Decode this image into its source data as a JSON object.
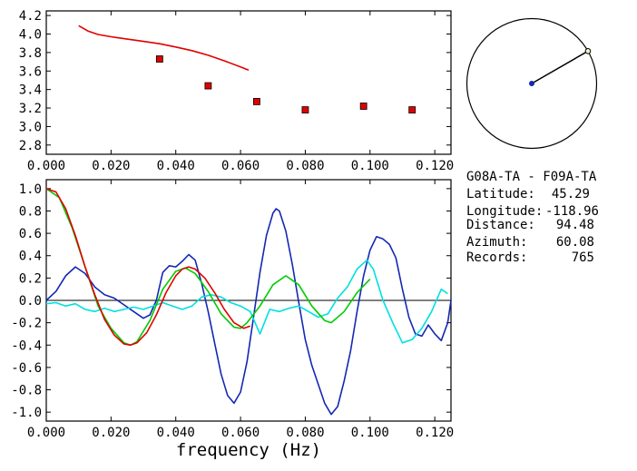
{
  "station_pair": "G08A-TA - F09A-TA",
  "info": [
    {
      "label": "Latitude:",
      "value": "45.29"
    },
    {
      "label": "Longitude:",
      "value": "-118.96"
    },
    {
      "label": "Distance:",
      "value": "94.48"
    },
    {
      "label": "Azimuth:",
      "value": "60.08"
    },
    {
      "label": "Records:",
      "value": "765"
    }
  ],
  "map": {
    "azimuth_deg": 60.08,
    "marker_color": "#1428b4"
  },
  "chart_data": [
    {
      "type": "scatter",
      "xlim": [
        0.0,
        0.125
      ],
      "ylim": [
        2.7,
        4.25
      ],
      "xticks": [
        "0.000",
        "0.020",
        "0.040",
        "0.060",
        "0.080",
        "0.100",
        "0.120"
      ],
      "yticks": [
        "2.8",
        "3.0",
        "3.2",
        "3.4",
        "3.6",
        "3.8",
        "4.0",
        "4.2"
      ],
      "series": [
        {
          "kind": "line",
          "color": "#e00000",
          "points": [
            [
              0.01,
              4.09
            ],
            [
              0.013,
              4.03
            ],
            [
              0.016,
              3.995
            ],
            [
              0.02,
              3.97
            ],
            [
              0.025,
              3.945
            ],
            [
              0.03,
              3.92
            ],
            [
              0.035,
              3.895
            ],
            [
              0.04,
              3.86
            ],
            [
              0.045,
              3.82
            ],
            [
              0.05,
              3.77
            ],
            [
              0.055,
              3.71
            ],
            [
              0.06,
              3.645
            ],
            [
              0.0625,
              3.61
            ]
          ]
        },
        {
          "kind": "markers",
          "color": "#e00000",
          "points": [
            [
              0.035,
              3.73
            ],
            [
              0.05,
              3.44
            ],
            [
              0.065,
              3.27
            ],
            [
              0.08,
              3.18
            ],
            [
              0.098,
              3.22
            ],
            [
              0.113,
              3.18
            ]
          ]
        }
      ]
    },
    {
      "type": "line",
      "xlim": [
        0.0,
        0.125
      ],
      "ylim": [
        -1.08,
        1.08
      ],
      "xticks": [
        "0.000",
        "0.020",
        "0.040",
        "0.060",
        "0.080",
        "0.100",
        "0.120"
      ],
      "yticks": [
        "1.0",
        "0.8",
        "0.6",
        "0.4",
        "0.2",
        "0.0",
        "-0.2",
        "-0.4",
        "-0.6",
        "-0.8",
        "-1.0"
      ],
      "xlabel": "frequency (Hz)",
      "zero_line": true,
      "series": [
        {
          "color": "#1428b4",
          "points": [
            [
              0.0,
              0.0
            ],
            [
              0.003,
              0.08
            ],
            [
              0.006,
              0.22
            ],
            [
              0.009,
              0.3
            ],
            [
              0.012,
              0.24
            ],
            [
              0.015,
              0.12
            ],
            [
              0.018,
              0.05
            ],
            [
              0.021,
              0.02
            ],
            [
              0.024,
              -0.04
            ],
            [
              0.027,
              -0.1
            ],
            [
              0.03,
              -0.16
            ],
            [
              0.032,
              -0.13
            ],
            [
              0.034,
              0.0
            ],
            [
              0.036,
              0.25
            ],
            [
              0.038,
              0.31
            ],
            [
              0.04,
              0.3
            ],
            [
              0.042,
              0.35
            ],
            [
              0.044,
              0.41
            ],
            [
              0.046,
              0.36
            ],
            [
              0.048,
              0.15
            ],
            [
              0.05,
              -0.1
            ],
            [
              0.052,
              -0.38
            ],
            [
              0.054,
              -0.66
            ],
            [
              0.056,
              -0.85
            ],
            [
              0.058,
              -0.92
            ],
            [
              0.06,
              -0.82
            ],
            [
              0.062,
              -0.55
            ],
            [
              0.064,
              -0.15
            ],
            [
              0.066,
              0.25
            ],
            [
              0.068,
              0.58
            ],
            [
              0.07,
              0.78
            ],
            [
              0.071,
              0.82
            ],
            [
              0.072,
              0.8
            ],
            [
              0.074,
              0.62
            ],
            [
              0.076,
              0.32
            ],
            [
              0.078,
              -0.02
            ],
            [
              0.08,
              -0.35
            ],
            [
              0.082,
              -0.58
            ],
            [
              0.084,
              -0.75
            ],
            [
              0.086,
              -0.92
            ],
            [
              0.088,
              -1.02
            ],
            [
              0.09,
              -0.95
            ],
            [
              0.092,
              -0.72
            ],
            [
              0.094,
              -0.45
            ],
            [
              0.096,
              -0.1
            ],
            [
              0.098,
              0.22
            ],
            [
              0.1,
              0.45
            ],
            [
              0.102,
              0.57
            ],
            [
              0.104,
              0.55
            ],
            [
              0.106,
              0.5
            ],
            [
              0.108,
              0.38
            ],
            [
              0.11,
              0.1
            ],
            [
              0.112,
              -0.15
            ],
            [
              0.114,
              -0.3
            ],
            [
              0.116,
              -0.32
            ],
            [
              0.118,
              -0.22
            ],
            [
              0.12,
              -0.3
            ],
            [
              0.122,
              -0.36
            ],
            [
              0.124,
              -0.2
            ],
            [
              0.125,
              0.0
            ]
          ]
        },
        {
          "color": "#00e0e0",
          "points": [
            [
              0.0,
              -0.03
            ],
            [
              0.003,
              -0.02
            ],
            [
              0.006,
              -0.05
            ],
            [
              0.009,
              -0.03
            ],
            [
              0.012,
              -0.08
            ],
            [
              0.015,
              -0.1
            ],
            [
              0.018,
              -0.07
            ],
            [
              0.021,
              -0.1
            ],
            [
              0.024,
              -0.08
            ],
            [
              0.027,
              -0.06
            ],
            [
              0.03,
              -0.08
            ],
            [
              0.033,
              -0.05
            ],
            [
              0.036,
              -0.02
            ],
            [
              0.039,
              -0.05
            ],
            [
              0.042,
              -0.08
            ],
            [
              0.045,
              -0.05
            ],
            [
              0.048,
              0.03
            ],
            [
              0.051,
              0.05
            ],
            [
              0.054,
              0.03
            ],
            [
              0.057,
              -0.02
            ],
            [
              0.06,
              -0.05
            ],
            [
              0.063,
              -0.1
            ],
            [
              0.066,
              -0.3
            ],
            [
              0.069,
              -0.08
            ],
            [
              0.072,
              -0.1
            ],
            [
              0.075,
              -0.07
            ],
            [
              0.078,
              -0.05
            ],
            [
              0.081,
              -0.1
            ],
            [
              0.084,
              -0.15
            ],
            [
              0.087,
              -0.12
            ],
            [
              0.09,
              0.02
            ],
            [
              0.093,
              0.12
            ],
            [
              0.096,
              0.28
            ],
            [
              0.099,
              0.36
            ],
            [
              0.101,
              0.28
            ],
            [
              0.104,
              0.0
            ],
            [
              0.107,
              -0.2
            ],
            [
              0.11,
              -0.38
            ],
            [
              0.113,
              -0.35
            ],
            [
              0.116,
              -0.25
            ],
            [
              0.119,
              -0.1
            ],
            [
              0.122,
              0.1
            ],
            [
              0.124,
              0.06
            ]
          ]
        },
        {
          "color": "#00cc00",
          "points": [
            [
              0.0,
              1.0
            ],
            [
              0.004,
              0.92
            ],
            [
              0.008,
              0.65
            ],
            [
              0.012,
              0.3
            ],
            [
              0.016,
              -0.05
            ],
            [
              0.02,
              -0.25
            ],
            [
              0.024,
              -0.38
            ],
            [
              0.026,
              -0.4
            ],
            [
              0.028,
              -0.37
            ],
            [
              0.032,
              -0.18
            ],
            [
              0.036,
              0.1
            ],
            [
              0.04,
              0.26
            ],
            [
              0.043,
              0.29
            ],
            [
              0.046,
              0.24
            ],
            [
              0.05,
              0.08
            ],
            [
              0.054,
              -0.12
            ],
            [
              0.058,
              -0.24
            ],
            [
              0.06,
              -0.25
            ],
            [
              0.062,
              -0.2
            ],
            [
              0.066,
              -0.05
            ],
            [
              0.07,
              0.14
            ],
            [
              0.074,
              0.22
            ],
            [
              0.078,
              0.14
            ],
            [
              0.082,
              -0.05
            ],
            [
              0.086,
              -0.18
            ],
            [
              0.088,
              -0.2
            ],
            [
              0.092,
              -0.1
            ],
            [
              0.096,
              0.07
            ],
            [
              0.1,
              0.19
            ]
          ]
        },
        {
          "color": "#e00000",
          "points": [
            [
              0.0,
              1.0
            ],
            [
              0.003,
              0.97
            ],
            [
              0.006,
              0.82
            ],
            [
              0.009,
              0.58
            ],
            [
              0.012,
              0.3
            ],
            [
              0.015,
              0.05
            ],
            [
              0.018,
              -0.17
            ],
            [
              0.021,
              -0.31
            ],
            [
              0.024,
              -0.39
            ],
            [
              0.026,
              -0.4
            ],
            [
              0.028,
              -0.38
            ],
            [
              0.031,
              -0.29
            ],
            [
              0.034,
              -0.13
            ],
            [
              0.037,
              0.07
            ],
            [
              0.04,
              0.22
            ],
            [
              0.042,
              0.28
            ],
            [
              0.044,
              0.3
            ],
            [
              0.046,
              0.28
            ],
            [
              0.049,
              0.2
            ],
            [
              0.052,
              0.07
            ],
            [
              0.055,
              -0.08
            ],
            [
              0.058,
              -0.2
            ],
            [
              0.061,
              -0.25
            ],
            [
              0.063,
              -0.23
            ]
          ]
        }
      ]
    }
  ]
}
